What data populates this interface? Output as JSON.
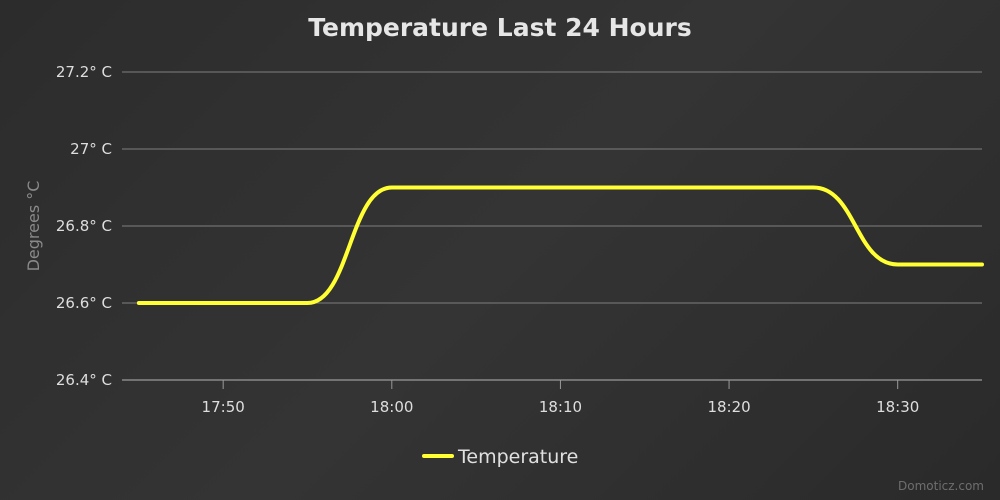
{
  "chart_data": {
    "type": "line",
    "title": "Temperature Last 24 Hours",
    "ylabel": "Degrees °C",
    "ylim": [
      26.4,
      27.2
    ],
    "xlim": [
      "17:44",
      "18:35"
    ],
    "x_ticks": [
      "17:50",
      "18:00",
      "18:10",
      "18:20",
      "18:30"
    ],
    "y_ticks": [
      {
        "value": 26.4,
        "label": "26.4° C"
      },
      {
        "value": 26.6,
        "label": "26.6° C"
      },
      {
        "value": 26.8,
        "label": "26.8° C"
      },
      {
        "value": 27.0,
        "label": "27° C"
      },
      {
        "value": 27.2,
        "label": "27.2° C"
      }
    ],
    "grid": true,
    "legend_position": "bottom-center",
    "series": [
      {
        "name": "Temperature",
        "color": "#ffff33",
        "points": [
          {
            "x": "17:45",
            "y": 26.6
          },
          {
            "x": "17:55",
            "y": 26.6
          },
          {
            "x": "18:00",
            "y": 26.9
          },
          {
            "x": "18:25",
            "y": 26.9
          },
          {
            "x": "18:30",
            "y": 26.7
          },
          {
            "x": "18:35",
            "y": 26.7
          }
        ]
      }
    ]
  },
  "credit": "Domoticz.com"
}
